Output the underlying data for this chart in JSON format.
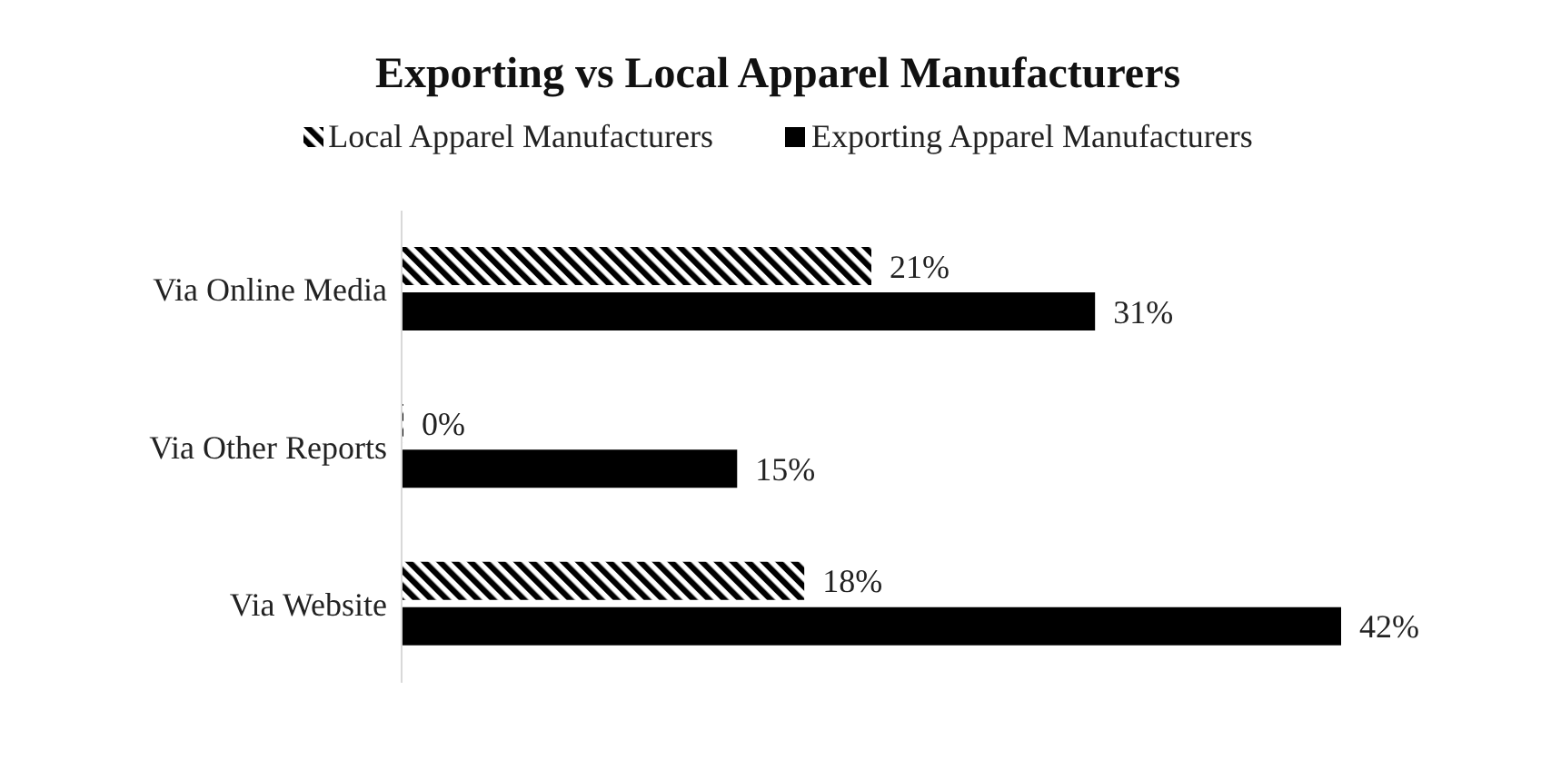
{
  "chart_data": {
    "type": "bar",
    "orientation": "horizontal",
    "title": "Exporting vs Local Apparel Manufacturers",
    "categories": [
      "Via Online Media",
      "Via Other Reports",
      "Via Website"
    ],
    "relative": false,
    "legend": "top",
    "series": [
      {
        "name": "Local Apparel Manufacturers",
        "color": "#000000",
        "values": [
          21,
          0,
          18
        ],
        "value_labels": [
          "21%",
          "0%",
          "18%"
        ]
      },
      {
        "name": "Exporting Apparel Manufacturers",
        "color": "#000000",
        "values": [
          31,
          15,
          42
        ],
        "value_labels": [
          "31%",
          "15%",
          "42%"
        ]
      }
    ]
  }
}
